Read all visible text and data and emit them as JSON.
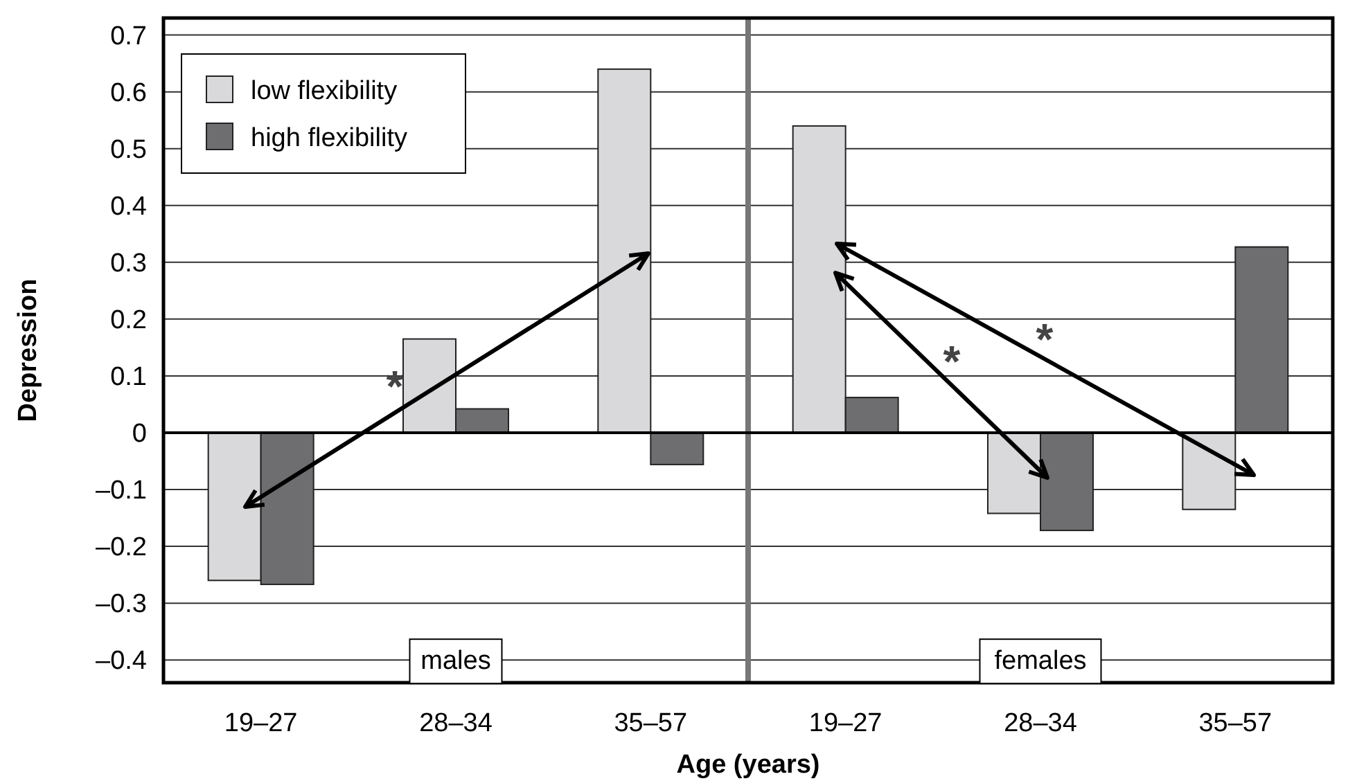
{
  "chart_data": {
    "type": "bar",
    "xlabel": "Age (years)",
    "ylabel": "Depression",
    "categories": [
      "19–27",
      "28–34",
      "35–57",
      "19–27",
      "28–34",
      "35–57"
    ],
    "series": [
      {
        "name": "low flexibility",
        "color": "#d9d9db",
        "values": [
          -0.26,
          0.165,
          0.64,
          0.54,
          -0.142,
          -0.135
        ]
      },
      {
        "name": "high flexibility",
        "color": "#6e6e70",
        "values": [
          -0.267,
          0.042,
          -0.056,
          0.062,
          -0.172,
          0.327
        ]
      }
    ],
    "ylim": [
      -0.44,
      0.73
    ],
    "yticks": [
      {
        "value": -0.4,
        "label": "–0.4"
      },
      {
        "value": -0.3,
        "label": "–0.3"
      },
      {
        "value": -0.2,
        "label": "–0.2"
      },
      {
        "value": -0.1,
        "label": "–0.1"
      },
      0,
      0.1,
      0.2,
      0.3,
      0.4,
      0.5,
      0.6,
      0.7
    ],
    "grid": "y",
    "legend": "top left",
    "annotations": [
      "males",
      "females",
      "*",
      "*",
      "*"
    ]
  }
}
